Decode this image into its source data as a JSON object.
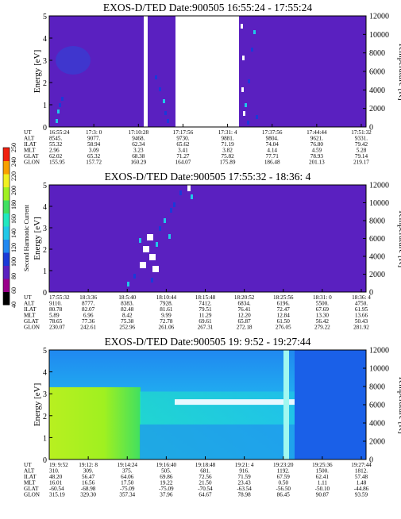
{
  "colors": {
    "background": "#5a20c0",
    "colorbar": [
      "#000000",
      "#9a008a",
      "#5a20c0",
      "#1a3ad8",
      "#2088f0",
      "#20c8e8",
      "#20e8c0",
      "#40e060",
      "#a0f020",
      "#f0f020",
      "#f8a000",
      "#f02010"
    ]
  },
  "colorbar": {
    "label": "Second Harmonic Current",
    "ticks": [
      "40",
      "60",
      "80",
      "100",
      "120",
      "140",
      "160",
      "180",
      "200",
      "220",
      "240",
      "250"
    ]
  },
  "chart_data": [
    {
      "type": "heatmap",
      "title": "EXOS-D/TED   Date:900505  16:55:24 - 17:55:24",
      "ylabel": "Energy [eV]",
      "y2label": "Temperature [K]",
      "ylim": [
        0,
        5
      ],
      "y2lim": [
        0,
        12000
      ],
      "yticks": [
        "0",
        "1",
        "2",
        "3",
        "4",
        "5"
      ],
      "y2ticks": [
        "0",
        "2000",
        "4000",
        "6000",
        "8000",
        "10000",
        "12000"
      ],
      "data_gaps": [
        "17:10:28-17:12:00",
        "17:16:00-17:30:00"
      ],
      "orbit_labels": [
        "UT",
        "ALT",
        "ILAT",
        "MLT",
        "GLAT",
        "GLON"
      ],
      "orbit": [
        [
          "16:55:24",
          "8545.",
          "55.32",
          "2.96",
          "62.02",
          "155.95"
        ],
        [
          "17:3: 0",
          "9077.",
          "58.94",
          "3.09",
          "65.32",
          "157.72"
        ],
        [
          "17:10:28",
          "9468.",
          "62.34",
          "3.23",
          "68.38",
          "160.29"
        ],
        [
          "17:17:56",
          "9730.",
          "65.62",
          "3.41",
          "71.27",
          "164.07"
        ],
        [
          "17:31: 4",
          "9881.",
          "71.19",
          "3.82",
          "75.82",
          "175.89"
        ],
        [
          "17:37:56",
          "9804.",
          "74.04",
          "4.14",
          "77.71",
          "186.48"
        ],
        [
          "17:44:44",
          "9621.",
          "76.80",
          "4.59",
          "78.93",
          "201.13"
        ],
        [
          "17:51:32",
          "9331.",
          "79.42",
          "5.28",
          "79.14",
          "219.17"
        ]
      ]
    },
    {
      "type": "heatmap",
      "title": "EXOS-D/TED   Date:900505  17:55:32 - 18:36: 4",
      "ylabel": "Energy [eV]",
      "y2label": "Temperature [K]",
      "ylim": [
        0,
        5
      ],
      "y2lim": [
        0,
        12000
      ],
      "yticks": [
        "0",
        "1",
        "2",
        "3",
        "4",
        "5"
      ],
      "y2ticks": [
        "0",
        "2000",
        "4000",
        "6000",
        "8000",
        "10000",
        "12000"
      ],
      "orbit_labels": [
        "UT",
        "ALT",
        "ILAT",
        "MLT",
        "GLAT",
        "GLON"
      ],
      "orbit": [
        [
          "17:55:32",
          "9110.",
          "80.78",
          "5.89",
          "78.65",
          "230.07"
        ],
        [
          "18:3:36",
          "8777.",
          "82.07",
          "6.96",
          "77.36",
          "242.61"
        ],
        [
          "18:5:40",
          "8383.",
          "82.48",
          "8.42",
          "75.38",
          "252.96"
        ],
        [
          "18:10:44",
          "7928.",
          "81.61",
          "9.99",
          "72.78",
          "261.06"
        ],
        [
          "18:15:48",
          "7412.",
          "79.51",
          "11.29",
          "69.61",
          "267.31"
        ],
        [
          "18:20:52",
          "6834.",
          "76.41",
          "12.20",
          "65.87",
          "272.18"
        ],
        [
          "18:25:56",
          "6196.",
          "72.47",
          "12.84",
          "61.50",
          "276.05"
        ],
        [
          "18:31: 0",
          "5500.",
          "67.69",
          "13.30",
          "56.42",
          "279.22"
        ],
        [
          "18:36: 4",
          "4750.",
          "61.95",
          "13.66",
          "50.43",
          "281.92"
        ]
      ]
    },
    {
      "type": "heatmap",
      "title": "EXOS-D/TED   Date:900505  19: 9:52 - 19:27:44",
      "ylabel": "Energy [eV]",
      "y2label": "Temperature [K]",
      "ylim": [
        0,
        5
      ],
      "y2lim": [
        0,
        12000
      ],
      "yticks": [
        "0",
        "1",
        "2",
        "3",
        "4",
        "5"
      ],
      "y2ticks": [
        "0",
        "2000",
        "4000",
        "6000",
        "8000",
        "10000",
        "12000"
      ],
      "orbit_labels": [
        "UT",
        "ALT",
        "ILAT",
        "MLT",
        "GLAT",
        "GLON"
      ],
      "orbit": [
        [
          "19: 9:52",
          "310.",
          "48.20",
          "16.01",
          "-60.54",
          "315.19"
        ],
        [
          "19:12: 8",
          "309.",
          "56.47",
          "16.56",
          "-68.98",
          "329.30"
        ],
        [
          "19:14:24",
          "375.",
          "64.06",
          "17.50",
          "-75.09",
          "357.34"
        ],
        [
          "19:16:40",
          "505.",
          "69.86",
          "19.22",
          "-75.09",
          "37.96"
        ],
        [
          "19:18:48",
          "681.",
          "72.56",
          "21.50",
          "-70.54",
          "64.67"
        ],
        [
          "19:21: 4",
          "916.",
          "71.59",
          "23.43",
          "-63.54",
          "78.98"
        ],
        [
          "19:23:20",
          "1192.",
          "67.59",
          "0.50",
          "-56.50",
          "86.45"
        ],
        [
          "19:25:36",
          "1500.",
          "62.41",
          "1.11",
          "-50.10",
          "90.87"
        ],
        [
          "19:27:44",
          "1812.",
          "57.48",
          "1.48",
          "-44.86",
          "93.59"
        ]
      ]
    }
  ]
}
